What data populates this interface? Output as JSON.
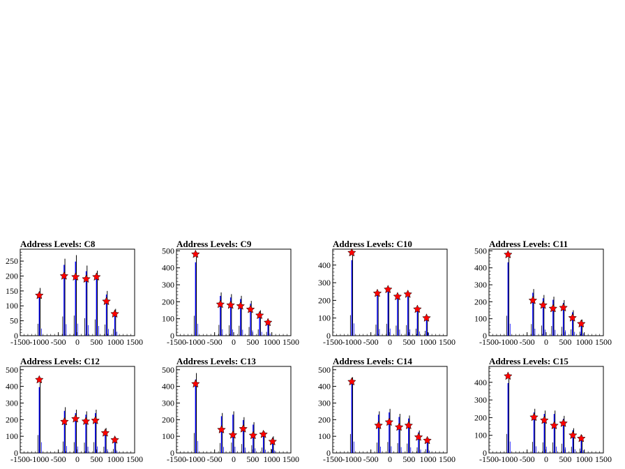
{
  "figure": {
    "background": "#ffffff"
  },
  "chart_data": [
    {
      "type": "histogram",
      "title": "Address Levels: C8",
      "xlim": [
        -1500,
        1500
      ],
      "xticks": [
        -1500,
        -1000,
        -500,
        0,
        500,
        1000,
        1500
      ],
      "ylim": [
        0,
        290
      ],
      "yticks": [
        0,
        50,
        100,
        150,
        200,
        250
      ],
      "peaks": [
        {
          "x": -1000,
          "y": 135
        },
        {
          "x": -350,
          "y": 200
        },
        {
          "x": -50,
          "y": 197
        },
        {
          "x": 230,
          "y": 190
        },
        {
          "x": 500,
          "y": 197
        },
        {
          "x": 760,
          "y": 115
        },
        {
          "x": 980,
          "y": 73
        }
      ],
      "bars": [
        [
          -1000,
          160
        ],
        [
          -350,
          258
        ],
        [
          -50,
          270
        ],
        [
          230,
          235
        ],
        [
          500,
          218
        ],
        [
          760,
          150
        ],
        [
          980,
          90
        ]
      ]
    },
    {
      "type": "histogram",
      "title": "Address Levels: C9",
      "xlim": [
        -1500,
        1500
      ],
      "xticks": [
        -1500,
        -1000,
        -500,
        0,
        500,
        1000,
        1500
      ],
      "ylim": [
        0,
        510
      ],
      "yticks": [
        0,
        100,
        200,
        300,
        400,
        500
      ],
      "peaks": [
        {
          "x": -1000,
          "y": 480
        },
        {
          "x": -350,
          "y": 185
        },
        {
          "x": -80,
          "y": 180
        },
        {
          "x": 180,
          "y": 175
        },
        {
          "x": 440,
          "y": 155
        },
        {
          "x": 680,
          "y": 120
        },
        {
          "x": 900,
          "y": 78
        }
      ],
      "bars": [
        [
          -1000,
          470
        ],
        [
          -350,
          255
        ],
        [
          -80,
          245
        ],
        [
          180,
          235
        ],
        [
          440,
          205
        ],
        [
          680,
          150
        ],
        [
          900,
          90
        ]
      ]
    },
    {
      "type": "histogram",
      "title": "Address Levels: C10",
      "xlim": [
        -1500,
        1500
      ],
      "xticks": [
        -1500,
        -1000,
        -500,
        0,
        500,
        1000,
        1500
      ],
      "ylim": [
        0,
        490
      ],
      "yticks": [
        0,
        100,
        200,
        300,
        400
      ],
      "peaks": [
        {
          "x": -1000,
          "y": 470
        },
        {
          "x": -330,
          "y": 240
        },
        {
          "x": -50,
          "y": 262
        },
        {
          "x": 200,
          "y": 222
        },
        {
          "x": 470,
          "y": 235
        },
        {
          "x": 720,
          "y": 150
        },
        {
          "x": 960,
          "y": 100
        }
      ],
      "bars": [
        [
          -1000,
          465
        ],
        [
          -330,
          250
        ],
        [
          -50,
          270
        ],
        [
          200,
          230
        ],
        [
          470,
          240
        ],
        [
          720,
          160
        ],
        [
          960,
          110
        ]
      ]
    },
    {
      "type": "histogram",
      "title": "Address Levels: C11",
      "xlim": [
        -1500,
        1500
      ],
      "xticks": [
        -1500,
        -1000,
        -500,
        0,
        500,
        1000,
        1500
      ],
      "ylim": [
        0,
        510
      ],
      "yticks": [
        0,
        100,
        200,
        300,
        400,
        500
      ],
      "peaks": [
        {
          "x": -1000,
          "y": 478
        },
        {
          "x": -350,
          "y": 208
        },
        {
          "x": -80,
          "y": 180
        },
        {
          "x": 180,
          "y": 160
        },
        {
          "x": 450,
          "y": 165
        },
        {
          "x": 690,
          "y": 105
        },
        {
          "x": 920,
          "y": 70
        }
      ],
      "bars": [
        [
          -1000,
          470
        ],
        [
          -350,
          275
        ],
        [
          -80,
          240
        ],
        [
          180,
          230
        ],
        [
          450,
          210
        ],
        [
          690,
          150
        ],
        [
          920,
          95
        ]
      ]
    },
    {
      "type": "histogram",
      "title": "Address Levels: C12",
      "xlim": [
        -1500,
        1500
      ],
      "xticks": [
        -1500,
        -1000,
        -500,
        0,
        500,
        1000,
        1500
      ],
      "ylim": [
        0,
        520
      ],
      "yticks": [
        0,
        100,
        200,
        300,
        400,
        500
      ],
      "peaks": [
        {
          "x": -1000,
          "y": 440
        },
        {
          "x": -340,
          "y": 188
        },
        {
          "x": -50,
          "y": 205
        },
        {
          "x": 220,
          "y": 190
        },
        {
          "x": 470,
          "y": 195
        },
        {
          "x": 730,
          "y": 120
        },
        {
          "x": 980,
          "y": 78
        }
      ],
      "bars": [
        [
          -1000,
          430
        ],
        [
          -340,
          275
        ],
        [
          -50,
          260
        ],
        [
          220,
          250
        ],
        [
          470,
          260
        ],
        [
          730,
          150
        ],
        [
          980,
          95
        ]
      ]
    },
    {
      "type": "histogram",
      "title": "Address Levels: C13",
      "xlim": [
        -1500,
        1500
      ],
      "xticks": [
        -1500,
        -1000,
        -500,
        0,
        500,
        1000,
        1500
      ],
      "ylim": [
        0,
        520
      ],
      "yticks": [
        0,
        100,
        200,
        300,
        400,
        500
      ],
      "peaks": [
        {
          "x": -1000,
          "y": 415
        },
        {
          "x": -320,
          "y": 140
        },
        {
          "x": -20,
          "y": 108
        },
        {
          "x": 250,
          "y": 145
        },
        {
          "x": 510,
          "y": 105
        },
        {
          "x": 780,
          "y": 112
        },
        {
          "x": 1020,
          "y": 68
        }
      ],
      "bars": [
        [
          -1000,
          480
        ],
        [
          -320,
          240
        ],
        [
          -20,
          250
        ],
        [
          250,
          215
        ],
        [
          510,
          185
        ],
        [
          780,
          130
        ],
        [
          1020,
          100
        ]
      ]
    },
    {
      "type": "histogram",
      "title": "Address Levels: C14",
      "xlim": [
        -1500,
        1500
      ],
      "xticks": [
        -1500,
        -1000,
        -500,
        0,
        500,
        1000,
        1500
      ],
      "ylim": [
        0,
        520
      ],
      "yticks": [
        0,
        100,
        200,
        300,
        400,
        500
      ],
      "peaks": [
        {
          "x": -1000,
          "y": 428
        },
        {
          "x": -300,
          "y": 165
        },
        {
          "x": -20,
          "y": 185
        },
        {
          "x": 240,
          "y": 155
        },
        {
          "x": 490,
          "y": 165
        },
        {
          "x": 750,
          "y": 95
        },
        {
          "x": 980,
          "y": 75
        }
      ],
      "bars": [
        [
          -1000,
          455
        ],
        [
          -300,
          250
        ],
        [
          -20,
          265
        ],
        [
          240,
          235
        ],
        [
          490,
          225
        ],
        [
          750,
          135
        ],
        [
          980,
          90
        ]
      ]
    },
    {
      "type": "histogram",
      "title": "Address Levels: C15",
      "xlim": [
        -1500,
        1500
      ],
      "xticks": [
        -1500,
        -1000,
        -500,
        0,
        500,
        1000,
        1500
      ],
      "ylim": [
        0,
        490
      ],
      "yticks": [
        0,
        100,
        200,
        300,
        400
      ],
      "peaks": [
        {
          "x": -1000,
          "y": 435
        },
        {
          "x": -320,
          "y": 202
        },
        {
          "x": -50,
          "y": 185
        },
        {
          "x": 210,
          "y": 155
        },
        {
          "x": 450,
          "y": 168
        },
        {
          "x": 700,
          "y": 100
        },
        {
          "x": 920,
          "y": 82
        }
      ],
      "bars": [
        [
          -1000,
          430
        ],
        [
          -320,
          250
        ],
        [
          -50,
          240
        ],
        [
          210,
          240
        ],
        [
          450,
          210
        ],
        [
          700,
          140
        ],
        [
          920,
          100
        ]
      ]
    }
  ],
  "colors": {
    "histogram": "#0000ff",
    "secondary": "#000000",
    "marker": "#ff0000",
    "axis": "#000000"
  }
}
